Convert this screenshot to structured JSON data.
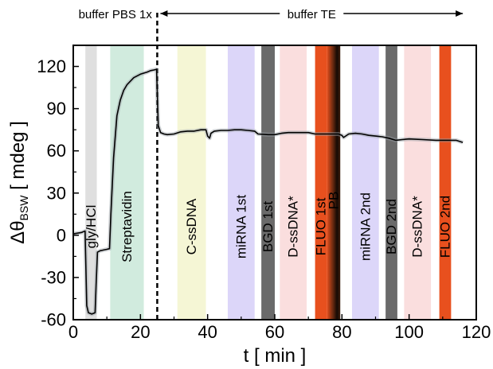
{
  "chart_data": {
    "type": "line",
    "title": "",
    "xlabel": "t [ min ]",
    "ylabel_main": "Δθ",
    "ylabel_sub": "BSW",
    "ylabel_unit": " [ mdeg ]",
    "xlim": [
      0,
      120
    ],
    "ylim": [
      -60,
      135
    ],
    "xticks": [
      0,
      20,
      40,
      60,
      80,
      100,
      120
    ],
    "yticks": [
      -60,
      -30,
      0,
      30,
      60,
      90,
      120
    ],
    "grid": false,
    "buffer_labels": [
      {
        "text": "buffer PBS 1x",
        "x_from": 0,
        "x_to": 25
      },
      {
        "text": "buffer TE",
        "x_from": 25,
        "x_to": 116
      }
    ],
    "divider_x": 25,
    "bands": [
      {
        "label": "gly/HCl",
        "x0": 3.6,
        "x1": 7.0,
        "color": "#d9d9d9",
        "opacity": 0.85
      },
      {
        "label": "Streptavidin",
        "x0": 11.0,
        "x1": 21.0,
        "color": "#c6e6d6",
        "opacity": 0.8
      },
      {
        "label": "C-ssDNA",
        "x0": 31.0,
        "x1": 39.5,
        "color": "#f4f5d0",
        "opacity": 0.9
      },
      {
        "label": "miRNA 1st",
        "x0": 46.0,
        "x1": 54.0,
        "color": "#d8d2f8",
        "opacity": 0.9
      },
      {
        "label": "BGD 1st",
        "x0": 56.0,
        "x1": 60.0,
        "color": "#6a6a6a",
        "opacity": 1.0
      },
      {
        "label": "D-ssDNA*",
        "x0": 61.5,
        "x1": 69.5,
        "color": "#f9dada",
        "opacity": 0.9
      },
      {
        "label": "FLUO 1st",
        "x0": 72.0,
        "x1": 75.5,
        "color": "#e8501e",
        "opacity": 1.0
      },
      {
        "label": "PB",
        "x0": 75.5,
        "x1": 79.5,
        "color": "gradient-dark",
        "opacity": 1.0
      },
      {
        "label": "miRNA 2nd",
        "x0": 83.0,
        "x1": 91.0,
        "color": "#d8d2f8",
        "opacity": 0.9
      },
      {
        "label": "BGD 2nd",
        "x0": 93.0,
        "x1": 96.5,
        "color": "#6a6a6a",
        "opacity": 1.0
      },
      {
        "label": "D-ssDNA*",
        "x0": 98.5,
        "x1": 106.5,
        "color": "#f9dada",
        "opacity": 0.9
      },
      {
        "label": "FLUO 2nd",
        "x0": 109.0,
        "x1": 112.5,
        "color": "#e8501e",
        "opacity": 1.0
      }
    ],
    "series": [
      {
        "color": "#000000",
        "x": [
          0,
          2.5,
          3.5,
          4.0,
          4.5,
          5.5,
          6.5,
          6.8,
          7.2,
          8,
          9,
          10,
          10.8,
          11.2,
          12,
          13,
          14,
          15,
          16,
          18,
          20,
          22,
          23,
          24,
          24.8,
          25.3,
          26,
          27,
          28,
          30,
          32,
          34,
          36,
          38,
          39.5,
          40,
          40.6,
          41,
          42,
          44,
          46,
          48,
          50,
          52,
          54,
          55,
          58,
          60,
          62,
          64,
          66,
          68,
          70,
          72,
          79,
          80,
          80.5,
          82,
          84,
          86,
          88,
          90,
          92,
          94,
          96,
          98,
          100,
          104,
          108,
          112,
          114,
          116
        ],
        "y": [
          1,
          2,
          3,
          -50,
          -55,
          -56,
          -55,
          -35,
          -12,
          -11,
          -10.5,
          -10,
          -9.5,
          15,
          55,
          85,
          96,
          103,
          107,
          112,
          114.5,
          116,
          117,
          117.5,
          118,
          78,
          73,
          72,
          71.5,
          72,
          73.5,
          74,
          74,
          75,
          75,
          70.5,
          69,
          72.5,
          74,
          74.5,
          74.5,
          75,
          75,
          74.5,
          74,
          72,
          71.5,
          71.5,
          72.5,
          73,
          73,
          73,
          73,
          72,
          72,
          71,
          69.5,
          72,
          72.5,
          72,
          71,
          70.5,
          70,
          69,
          67.5,
          68,
          68.5,
          68,
          67.5,
          67.5,
          67.5,
          66
        ]
      }
    ]
  }
}
